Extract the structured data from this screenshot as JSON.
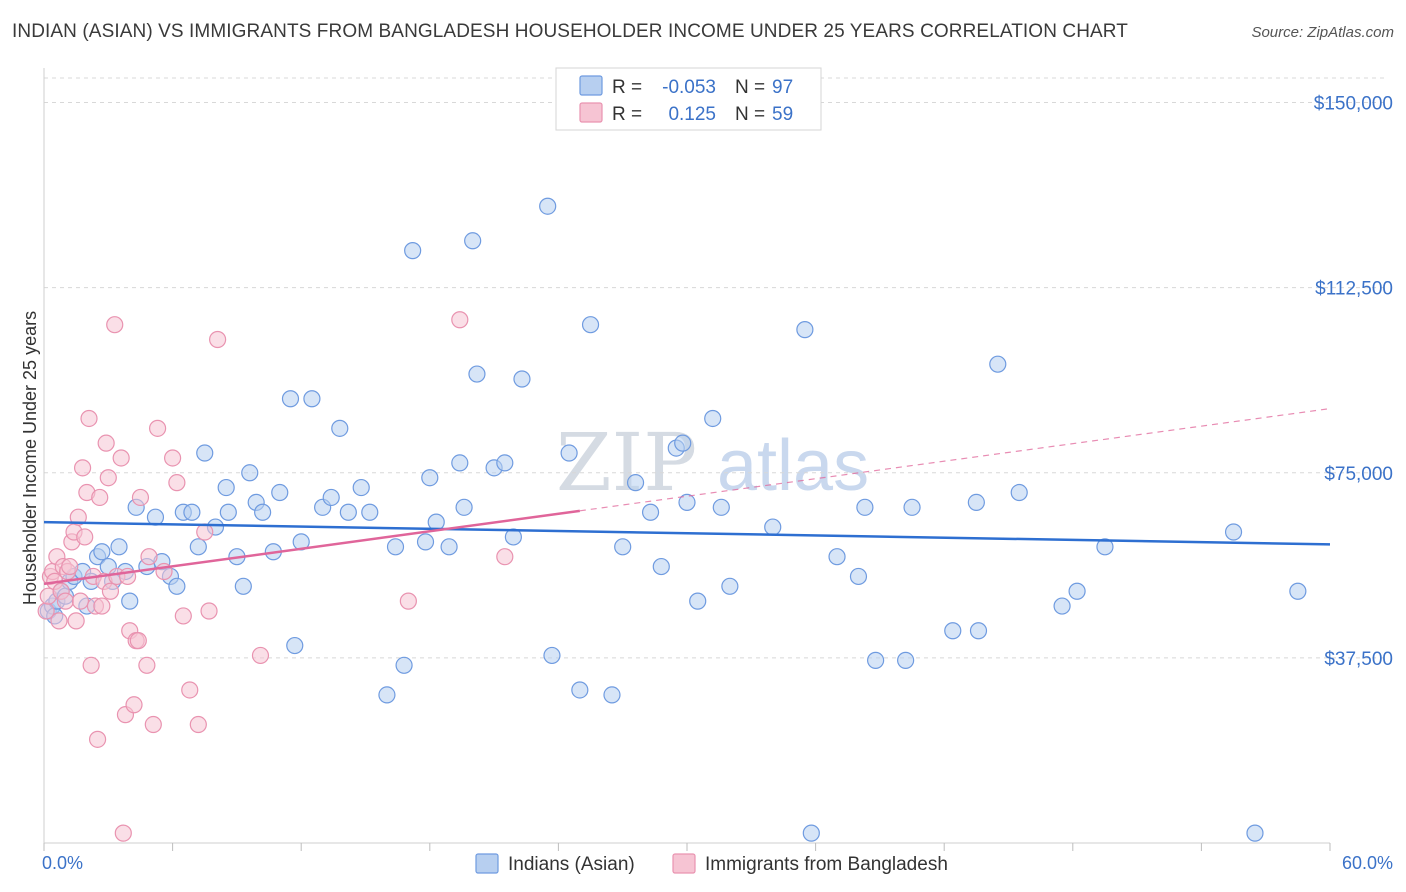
{
  "title": "INDIAN (ASIAN) VS IMMIGRANTS FROM BANGLADESH HOUSEHOLDER INCOME UNDER 25 YEARS CORRELATION CHART",
  "source": "Source: ZipAtlas.com",
  "watermark": {
    "zip": "ZIP",
    "atlas": "atlas"
  },
  "colors": {
    "blue_fill": "#b7cff0",
    "blue_stroke": "#6f9be0",
    "blue_line": "#2e6fd1",
    "pink_fill": "#f6c4d3",
    "pink_stroke": "#e993b0",
    "pink_line": "#e0659a",
    "accent_text": "#3b72c8",
    "grid": "#d8d8d8"
  },
  "legend": {
    "rows": [
      {
        "r_label": "R =",
        "r_value": "-0.053",
        "n_label": "N =",
        "n_value": "97"
      },
      {
        "r_label": "R =",
        "r_value": "0.125",
        "n_label": "N =",
        "n_value": "59"
      }
    ]
  },
  "chart_data": {
    "type": "scatter",
    "title": "INDIAN (ASIAN) VS IMMIGRANTS FROM BANGLADESH HOUSEHOLDER INCOME UNDER 25 YEARS CORRELATION CHART",
    "xlabel": "",
    "ylabel": "Householder Income Under 25 years",
    "xlim": [
      0,
      60
    ],
    "ylim": [
      0,
      157000
    ],
    "x_tick_labels": [
      "0.0%",
      "60.0%"
    ],
    "y_ticks": [
      37500,
      75000,
      112500,
      150000
    ],
    "y_tick_labels": [
      "$37,500",
      "$75,000",
      "$112,500",
      "$150,000"
    ],
    "grid": true,
    "series": [
      {
        "name": "Indians (Asian)",
        "r": -0.053,
        "n": 97,
        "trend": {
          "x0": 0,
          "y0": 65000,
          "x1": 60,
          "y1": 60500,
          "solid_until": 60
        },
        "points": [
          [
            0.2,
            47000
          ],
          [
            0.4,
            48000
          ],
          [
            0.5,
            46000
          ],
          [
            0.6,
            49000
          ],
          [
            0.8,
            51000
          ],
          [
            1.0,
            50000
          ],
          [
            1.2,
            53000
          ],
          [
            1.4,
            54000
          ],
          [
            1.8,
            55000
          ],
          [
            2.0,
            48000
          ],
          [
            2.2,
            53000
          ],
          [
            2.5,
            58000
          ],
          [
            2.7,
            59000
          ],
          [
            3.0,
            56000
          ],
          [
            3.2,
            53000
          ],
          [
            3.5,
            60000
          ],
          [
            3.8,
            55000
          ],
          [
            4.0,
            49000
          ],
          [
            4.3,
            68000
          ],
          [
            4.8,
            56000
          ],
          [
            5.2,
            66000
          ],
          [
            5.5,
            57000
          ],
          [
            5.9,
            54000
          ],
          [
            6.2,
            52000
          ],
          [
            6.5,
            67000
          ],
          [
            6.9,
            67000
          ],
          [
            7.2,
            60000
          ],
          [
            7.5,
            79000
          ],
          [
            8.0,
            64000
          ],
          [
            8.5,
            72000
          ],
          [
            8.6,
            67000
          ],
          [
            9.0,
            58000
          ],
          [
            9.3,
            52000
          ],
          [
            9.6,
            75000
          ],
          [
            9.9,
            69000
          ],
          [
            10.2,
            67000
          ],
          [
            10.7,
            59000
          ],
          [
            11.0,
            71000
          ],
          [
            11.5,
            90000
          ],
          [
            11.7,
            40000
          ],
          [
            12.0,
            61000
          ],
          [
            12.5,
            90000
          ],
          [
            13.0,
            68000
          ],
          [
            13.4,
            70000
          ],
          [
            13.8,
            84000
          ],
          [
            14.2,
            67000
          ],
          [
            14.8,
            72000
          ],
          [
            15.2,
            67000
          ],
          [
            16.0,
            30000
          ],
          [
            16.4,
            60000
          ],
          [
            16.8,
            36000
          ],
          [
            17.2,
            120000
          ],
          [
            17.8,
            61000
          ],
          [
            18.0,
            74000
          ],
          [
            18.3,
            65000
          ],
          [
            18.9,
            60000
          ],
          [
            19.4,
            77000
          ],
          [
            19.6,
            68000
          ],
          [
            20.0,
            122000
          ],
          [
            20.2,
            95000
          ],
          [
            21.0,
            76000
          ],
          [
            21.5,
            77000
          ],
          [
            21.9,
            62000
          ],
          [
            22.3,
            94000
          ],
          [
            23.5,
            129000
          ],
          [
            23.7,
            38000
          ],
          [
            24.5,
            79000
          ],
          [
            25.0,
            31000
          ],
          [
            25.5,
            105000
          ],
          [
            26.5,
            30000
          ],
          [
            27.0,
            60000
          ],
          [
            27.6,
            73000
          ],
          [
            28.3,
            67000
          ],
          [
            28.8,
            56000
          ],
          [
            29.5,
            80000
          ],
          [
            29.8,
            81000
          ],
          [
            30.0,
            69000
          ],
          [
            30.5,
            49000
          ],
          [
            31.2,
            86000
          ],
          [
            31.6,
            68000
          ],
          [
            32.0,
            52000
          ],
          [
            34.0,
            64000
          ],
          [
            35.5,
            104000
          ],
          [
            35.8,
            2000
          ],
          [
            37.0,
            58000
          ],
          [
            38.0,
            54000
          ],
          [
            38.3,
            68000
          ],
          [
            38.8,
            37000
          ],
          [
            40.2,
            37000
          ],
          [
            40.5,
            68000
          ],
          [
            42.4,
            43000
          ],
          [
            43.5,
            69000
          ],
          [
            43.6,
            43000
          ],
          [
            44.5,
            97000
          ],
          [
            45.5,
            71000
          ],
          [
            47.5,
            48000
          ],
          [
            48.2,
            51000
          ],
          [
            49.5,
            60000
          ],
          [
            55.5,
            63000
          ],
          [
            56.5,
            2000
          ],
          [
            58.5,
            51000
          ]
        ]
      },
      {
        "name": "Immigrants from Bangladesh",
        "r": 0.125,
        "n": 59,
        "trend": {
          "x0": 0,
          "y0": 52500,
          "x1": 60,
          "y1": 88000,
          "solid_until": 25
        },
        "points": [
          [
            0.1,
            47000
          ],
          [
            0.2,
            50000
          ],
          [
            0.3,
            54000
          ],
          [
            0.4,
            55000
          ],
          [
            0.5,
            53000
          ],
          [
            0.6,
            58000
          ],
          [
            0.7,
            45000
          ],
          [
            0.8,
            51000
          ],
          [
            0.9,
            56000
          ],
          [
            1.0,
            49000
          ],
          [
            1.1,
            55000
          ],
          [
            1.2,
            56000
          ],
          [
            1.3,
            61000
          ],
          [
            1.4,
            63000
          ],
          [
            1.5,
            45000
          ],
          [
            1.6,
            66000
          ],
          [
            1.7,
            49000
          ],
          [
            1.8,
            76000
          ],
          [
            1.9,
            62000
          ],
          [
            2.0,
            71000
          ],
          [
            2.1,
            86000
          ],
          [
            2.2,
            36000
          ],
          [
            2.3,
            54000
          ],
          [
            2.4,
            48000
          ],
          [
            2.5,
            21000
          ],
          [
            2.6,
            70000
          ],
          [
            2.7,
            48000
          ],
          [
            2.8,
            53000
          ],
          [
            2.9,
            81000
          ],
          [
            3.0,
            74000
          ],
          [
            3.1,
            51000
          ],
          [
            3.3,
            105000
          ],
          [
            3.4,
            54000
          ],
          [
            3.6,
            78000
          ],
          [
            3.7,
            2000
          ],
          [
            3.8,
            26000
          ],
          [
            3.9,
            54000
          ],
          [
            4.0,
            43000
          ],
          [
            4.2,
            28000
          ],
          [
            4.3,
            41000
          ],
          [
            4.4,
            41000
          ],
          [
            4.5,
            70000
          ],
          [
            4.8,
            36000
          ],
          [
            4.9,
            58000
          ],
          [
            5.1,
            24000
          ],
          [
            5.3,
            84000
          ],
          [
            5.6,
            55000
          ],
          [
            6.0,
            78000
          ],
          [
            6.2,
            73000
          ],
          [
            6.5,
            46000
          ],
          [
            6.8,
            31000
          ],
          [
            7.2,
            24000
          ],
          [
            7.5,
            63000
          ],
          [
            7.7,
            47000
          ],
          [
            8.1,
            102000
          ],
          [
            10.1,
            38000
          ],
          [
            17.0,
            49000
          ],
          [
            19.4,
            106000
          ],
          [
            21.5,
            58000
          ]
        ]
      }
    ]
  },
  "bottom_legend": {
    "items": [
      {
        "label": "Indians (Asian)"
      },
      {
        "label": "Immigrants from Bangladesh"
      }
    ]
  }
}
